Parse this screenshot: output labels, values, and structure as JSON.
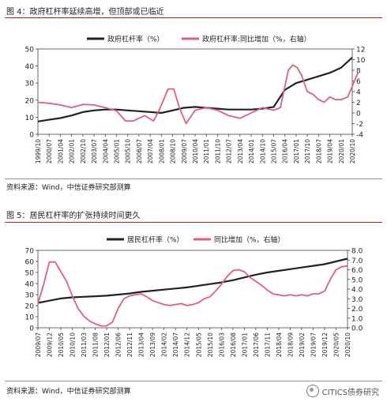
{
  "figure1": {
    "title": "图 4：政府杠杆率延续高增，但顶部或已临近",
    "source": "资料来源：Wind，中信证券研究部测算"
  },
  "figure2": {
    "title": "图 5：居民杠杆率的扩张持续时间更久",
    "source": "资料来源：Wind，中信证券研究部测算"
  },
  "watermark": "CITICS债券研究",
  "colors": {
    "primary": "#222222",
    "secondary": "#e0607a",
    "rule": "#c8161d"
  },
  "chart_data": [
    {
      "type": "line",
      "legend_position": "top-center",
      "grid": false,
      "x_tick_labels": [
        "1999/10",
        "2000/07",
        "2001/04",
        "2002/01",
        "2002/10",
        "2003/07",
        "2004/04",
        "2005/01",
        "2005/10",
        "2006/07",
        "2007/04",
        "2008/01",
        "2008/10",
        "2009/07",
        "2010/04",
        "2011/01",
        "2011/10",
        "2012/07",
        "2013/04",
        "2014/01",
        "2014/10",
        "2015/07",
        "2016/04",
        "2017/01",
        "2017/10",
        "2018/07",
        "2019/04",
        "2020/01",
        "2020/10"
      ],
      "ylim_left": [
        0,
        50
      ],
      "yticks_left": [
        0,
        10,
        20,
        30,
        40,
        50
      ],
      "ylim_right": [
        -4,
        12
      ],
      "yticks_right": [
        -4,
        -2,
        0,
        2,
        4,
        6,
        8,
        10,
        12
      ],
      "series": [
        {
          "name": "政府杠杆率（%）",
          "axis": "left",
          "color": "#222222",
          "x": [
            0,
            1,
            2,
            3,
            4,
            5,
            6,
            7,
            8,
            9,
            10,
            11,
            12,
            13,
            14,
            15,
            16,
            17,
            18,
            19,
            20,
            21,
            22,
            23,
            24,
            25,
            26,
            27,
            28
          ],
          "values": [
            7.5,
            8.5,
            9.5,
            11.0,
            13.0,
            14.0,
            14.5,
            14.5,
            14.0,
            13.5,
            13.0,
            12.5,
            14.0,
            15.5,
            16.0,
            15.5,
            15.0,
            14.5,
            14.5,
            14.5,
            15.0,
            16.0,
            26.0,
            30.0,
            32.0,
            34.0,
            36.0,
            39.0,
            45.0
          ]
        },
        {
          "name": "政府杠杆率:同比增加（%，右轴）",
          "axis": "right",
          "color": "#e0607a",
          "x": [
            0,
            1,
            2,
            3,
            4,
            5,
            6,
            7,
            7.8,
            8.5,
            9.5,
            10.3,
            10.8,
            11.2,
            11.6,
            12.1,
            12.6,
            13.2,
            14,
            15,
            16,
            17,
            18,
            19,
            20,
            21,
            21.6,
            22,
            22.3,
            22.7,
            23.1,
            23.5,
            24,
            24.5,
            25,
            25.5,
            26,
            26.5,
            27,
            27.6,
            28,
            28.5
          ],
          "values": [
            2.0,
            1.8,
            1.5,
            1.0,
            1.6,
            1.5,
            1.0,
            0.4,
            -1.5,
            -1.5,
            -0.5,
            -1.5,
            0.5,
            2.5,
            4.5,
            4.5,
            1.0,
            -2.0,
            0.5,
            1.0,
            0.5,
            -0.5,
            -1.0,
            0.0,
            1.0,
            0.5,
            1.0,
            5.0,
            8.0,
            9.0,
            8.5,
            7.0,
            4.0,
            3.5,
            2.5,
            2.0,
            3.0,
            2.5,
            2.5,
            3.0,
            5.0,
            7.5
          ]
        }
      ]
    },
    {
      "type": "line",
      "legend_position": "top-center",
      "grid": false,
      "x_tick_labels": [
        "2009/07",
        "2009/12",
        "2010/05",
        "2010/10",
        "2011/03",
        "2011/08",
        "2012/01",
        "2012/06",
        "2012/11",
        "2013/04",
        "2013/09",
        "2014/02",
        "2014/07",
        "2014/12",
        "2015/05",
        "2015/10",
        "2016/03",
        "2016/08",
        "2017/01",
        "2017/06",
        "2017/11",
        "2018/04",
        "2018/09",
        "2019/02",
        "2019/07",
        "2019/12",
        "2020/05",
        "2020/10"
      ],
      "ylim_left": [
        0,
        70
      ],
      "yticks_left": [
        0,
        10,
        20,
        30,
        40,
        50,
        60,
        70
      ],
      "ylim_right": [
        0,
        8
      ],
      "yticks_right": [
        0.0,
        1.0,
        2.0,
        3.0,
        4.0,
        5.0,
        6.0,
        7.0,
        8.0
      ],
      "series": [
        {
          "name": "居民杠杆率（%）",
          "axis": "left",
          "color": "#222222",
          "x": [
            0,
            1,
            2,
            3,
            4,
            5,
            6,
            7,
            8,
            9,
            10,
            11,
            12,
            13,
            14,
            15,
            16,
            17,
            18,
            19,
            20,
            21,
            22,
            23,
            24,
            25,
            26,
            27
          ],
          "values": [
            22.5,
            24.5,
            26.5,
            27.5,
            28.0,
            28.5,
            29.0,
            30.0,
            31.0,
            32.5,
            33.5,
            34.5,
            35.5,
            36.5,
            38.0,
            39.5,
            41.0,
            43.0,
            45.5,
            48.0,
            50.0,
            51.5,
            53.0,
            54.5,
            56.0,
            57.5,
            60.0,
            62.5
          ]
        },
        {
          "name": "同比增加（%，右轴）",
          "axis": "right",
          "color": "#e0607a",
          "x": [
            0,
            0.5,
            1,
            1.5,
            2,
            2.5,
            3,
            3.5,
            4,
            4.5,
            5,
            5.5,
            6,
            6.5,
            7,
            7.5,
            8,
            8.5,
            9,
            9.5,
            10,
            10.5,
            11,
            11.5,
            12,
            12.5,
            13,
            13.5,
            14,
            14.5,
            15,
            15.5,
            16,
            16.5,
            17,
            17.5,
            18,
            18.5,
            19,
            19.5,
            20,
            20.5,
            21,
            21.5,
            22,
            22.5,
            23,
            23.5,
            24,
            24.5,
            25,
            25.5,
            26,
            26.5,
            27
          ],
          "values": [
            2.5,
            4.5,
            6.8,
            6.8,
            5.8,
            4.8,
            3.3,
            2.0,
            1.2,
            0.7,
            0.4,
            0.2,
            0.2,
            0.6,
            2.0,
            3.0,
            3.3,
            3.4,
            3.5,
            3.2,
            2.8,
            2.6,
            2.4,
            2.3,
            2.4,
            2.5,
            2.3,
            2.4,
            2.6,
            3.0,
            3.2,
            3.8,
            4.5,
            5.3,
            5.9,
            6.0,
            5.8,
            5.2,
            4.8,
            4.4,
            3.9,
            3.5,
            3.4,
            3.3,
            3.4,
            3.3,
            3.4,
            3.3,
            3.5,
            3.5,
            3.8,
            5.0,
            6.0,
            6.3,
            6.4
          ]
        }
      ]
    }
  ]
}
